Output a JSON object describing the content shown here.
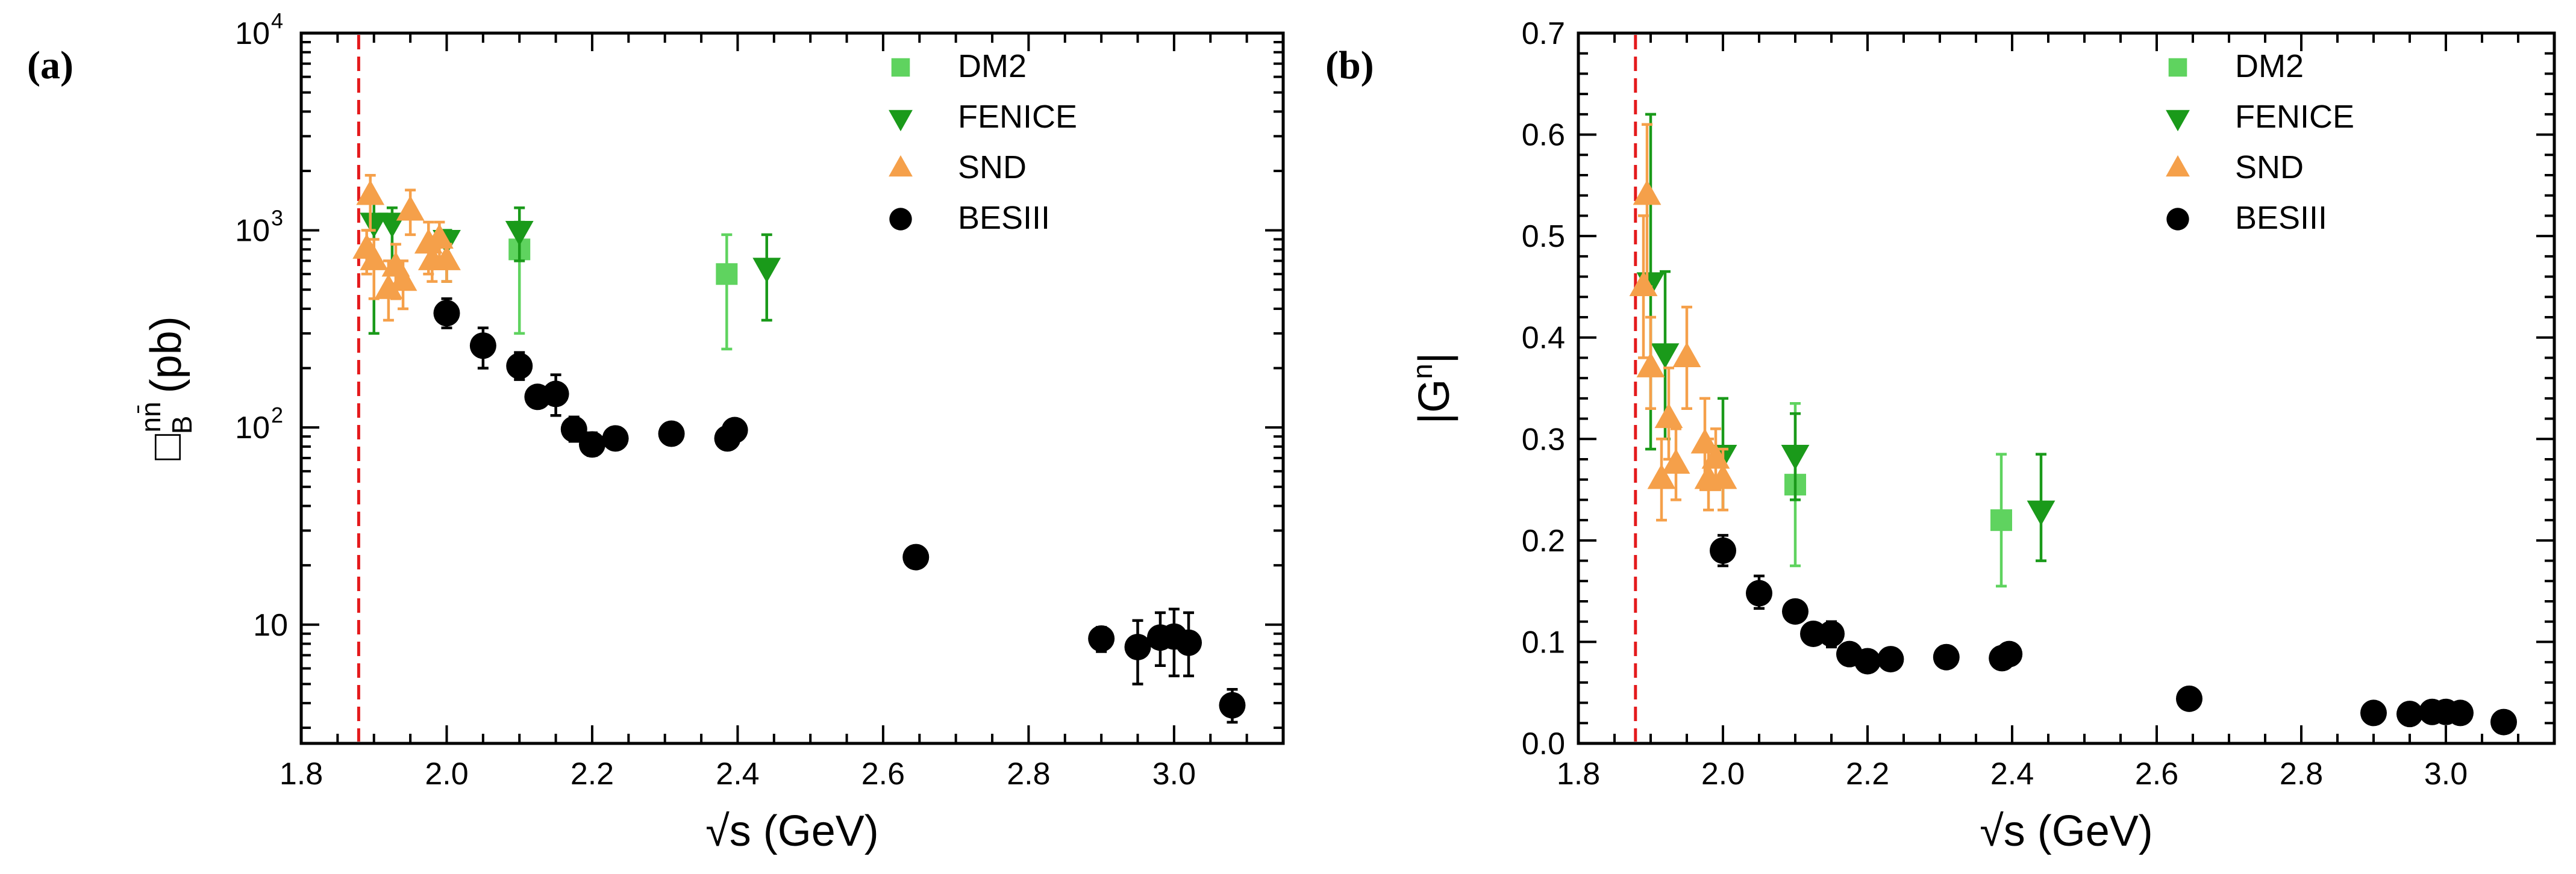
{
  "chart_data": [
    {
      "type": "scatter",
      "panel_label": "(a)",
      "xlabel": "√s (GeV)",
      "ylabel": "□",
      "ylabel_sup": "nn̄",
      "ylabel_sub": "B",
      "ylabel_unit": "(pb)",
      "xlim": [
        1.8,
        3.15
      ],
      "ylim": [
        2.5,
        10000
      ],
      "yscale": "log",
      "x_ticks": [
        "1.8",
        "2.0",
        "2.2",
        "2.4",
        "2.6",
        "2.8",
        "3.0"
      ],
      "y_ticks": [
        {
          "value": 10,
          "label": "10"
        },
        {
          "value": 100,
          "label": "10",
          "exp": "2"
        },
        {
          "value": 1000,
          "label": "10",
          "exp": "3"
        },
        {
          "value": 10000,
          "label": "10",
          "exp": "4"
        }
      ],
      "threshold_line": {
        "x": 1.879,
        "color": "#e41a1c"
      },
      "legend_position": "top-right",
      "series": [
        {
          "name": "DM2",
          "marker": "square",
          "color": "#5fd35f",
          "points": [
            {
              "x": 2.1,
              "y": 800,
              "lo": 300,
              "hi": 1100
            },
            {
              "x": 2.385,
              "y": 600,
              "lo": 250,
              "hi": 950
            }
          ]
        },
        {
          "name": "FENICE",
          "marker": "triangle-down",
          "color": "#1a9a1a",
          "points": [
            {
              "x": 1.9,
              "y": 1100,
              "lo": 300,
              "hi": 1400
            },
            {
              "x": 1.925,
              "y": 1100,
              "lo": 600,
              "hi": 1300
            },
            {
              "x": 2.0,
              "y": 900,
              "lo": 550,
              "hi": 1000
            },
            {
              "x": 2.1,
              "y": 1000,
              "lo": 700,
              "hi": 1300
            },
            {
              "x": 2.44,
              "y": 650,
              "lo": 350,
              "hi": 950
            }
          ]
        },
        {
          "name": "SND",
          "marker": "triangle-up",
          "color": "#f5a04a",
          "points": [
            {
              "x": 1.89,
              "y": 800,
              "lo": 600,
              "hi": 1000
            },
            {
              "x": 1.895,
              "y": 1500,
              "lo": 1000,
              "hi": 1900
            },
            {
              "x": 1.9,
              "y": 700,
              "lo": 450,
              "hi": 900
            },
            {
              "x": 1.92,
              "y": 500,
              "lo": 350,
              "hi": 700
            },
            {
              "x": 1.93,
              "y": 650,
              "lo": 450,
              "hi": 850
            },
            {
              "x": 1.94,
              "y": 550,
              "lo": 400,
              "hi": 700
            },
            {
              "x": 1.95,
              "y": 1250,
              "lo": 950,
              "hi": 1600
            },
            {
              "x": 1.975,
              "y": 850,
              "lo": 600,
              "hi": 1100
            },
            {
              "x": 1.98,
              "y": 700,
              "lo": 550,
              "hi": 900
            },
            {
              "x": 1.99,
              "y": 900,
              "lo": 700,
              "hi": 1100
            },
            {
              "x": 2.0,
              "y": 700,
              "lo": 550,
              "hi": 850
            }
          ]
        },
        {
          "name": "BESIII",
          "marker": "circle",
          "color": "#000000",
          "points": [
            {
              "x": 2.0,
              "y": 380,
              "lo": 320,
              "hi": 450
            },
            {
              "x": 2.05,
              "y": 260,
              "lo": 200,
              "hi": 320
            },
            {
              "x": 2.1,
              "y": 205,
              "lo": 175,
              "hi": 240
            },
            {
              "x": 2.125,
              "y": 143,
              "lo": 133,
              "hi": 153
            },
            {
              "x": 2.15,
              "y": 148,
              "lo": 115,
              "hi": 185
            },
            {
              "x": 2.175,
              "y": 98,
              "lo": 85,
              "hi": 113
            },
            {
              "x": 2.2,
              "y": 82,
              "lo": 72,
              "hi": 94
            },
            {
              "x": 2.232,
              "y": 88,
              "lo": 78,
              "hi": 100
            },
            {
              "x": 2.309,
              "y": 93,
              "lo": 84,
              "hi": 103
            },
            {
              "x": 2.386,
              "y": 88,
              "lo": 80,
              "hi": 97
            },
            {
              "x": 2.396,
              "y": 97,
              "lo": 92,
              "hi": 102
            },
            {
              "x": 2.645,
              "y": 22,
              "lo": 19.5,
              "hi": 24.5
            },
            {
              "x": 2.9,
              "y": 8.5,
              "lo": 7.3,
              "hi": 9.7
            },
            {
              "x": 2.95,
              "y": 7.7,
              "lo": 5.0,
              "hi": 10.5
            },
            {
              "x": 2.981,
              "y": 8.6,
              "lo": 6.2,
              "hi": 11.5
            },
            {
              "x": 3.0,
              "y": 8.7,
              "lo": 5.5,
              "hi": 12
            },
            {
              "x": 3.02,
              "y": 8.1,
              "lo": 5.5,
              "hi": 11.5
            },
            {
              "x": 3.08,
              "y": 3.9,
              "lo": 3.2,
              "hi": 4.7
            }
          ]
        }
      ]
    },
    {
      "type": "scatter",
      "panel_label": "(b)",
      "xlabel": "√s (GeV)",
      "ylabel": "|G",
      "ylabel_sup": "n",
      "ylabel_tail": "|",
      "xlim": [
        1.8,
        3.15
      ],
      "ylim": [
        0.0,
        0.7
      ],
      "yscale": "linear",
      "x_ticks": [
        "1.8",
        "2.0",
        "2.2",
        "2.4",
        "2.6",
        "2.8",
        "3.0"
      ],
      "y_ticks": [
        {
          "value": 0.0,
          "label": "0.0"
        },
        {
          "value": 0.1,
          "label": "0.1"
        },
        {
          "value": 0.2,
          "label": "0.2"
        },
        {
          "value": 0.3,
          "label": "0.3"
        },
        {
          "value": 0.4,
          "label": "0.4"
        },
        {
          "value": 0.5,
          "label": "0.5"
        },
        {
          "value": 0.6,
          "label": "0.6"
        },
        {
          "value": 0.7,
          "label": "0.7"
        }
      ],
      "threshold_line": {
        "x": 1.879,
        "color": "#e41a1c"
      },
      "legend_position": "top-right",
      "series": [
        {
          "name": "DM2",
          "marker": "square",
          "color": "#5fd35f",
          "points": [
            {
              "x": 2.1,
              "y": 0.255,
              "lo": 0.175,
              "hi": 0.335
            },
            {
              "x": 2.385,
              "y": 0.22,
              "lo": 0.155,
              "hi": 0.285
            }
          ]
        },
        {
          "name": "FENICE",
          "marker": "triangle-down",
          "color": "#1a9a1a",
          "points": [
            {
              "x": 1.9,
              "y": 0.455,
              "lo": 0.29,
              "hi": 0.62
            },
            {
              "x": 1.92,
              "y": 0.385,
              "lo": 0.3,
              "hi": 0.465
            },
            {
              "x": 2.0,
              "y": 0.285,
              "lo": 0.23,
              "hi": 0.34
            },
            {
              "x": 2.1,
              "y": 0.285,
              "lo": 0.24,
              "hi": 0.325
            },
            {
              "x": 2.44,
              "y": 0.23,
              "lo": 0.18,
              "hi": 0.285
            }
          ]
        },
        {
          "name": "SND",
          "marker": "triangle-up",
          "color": "#f5a04a",
          "points": [
            {
              "x": 1.89,
              "y": 0.45,
              "lo": 0.38,
              "hi": 0.52
            },
            {
              "x": 1.895,
              "y": 0.54,
              "lo": 0.45,
              "hi": 0.61
            },
            {
              "x": 1.9,
              "y": 0.37,
              "lo": 0.33,
              "hi": 0.42
            },
            {
              "x": 1.915,
              "y": 0.26,
              "lo": 0.22,
              "hi": 0.3
            },
            {
              "x": 1.925,
              "y": 0.32,
              "lo": 0.28,
              "hi": 0.37
            },
            {
              "x": 1.935,
              "y": 0.275,
              "lo": 0.24,
              "hi": 0.31
            },
            {
              "x": 1.95,
              "y": 0.38,
              "lo": 0.33,
              "hi": 0.43
            },
            {
              "x": 1.975,
              "y": 0.295,
              "lo": 0.25,
              "hi": 0.34
            },
            {
              "x": 1.98,
              "y": 0.26,
              "lo": 0.23,
              "hi": 0.3
            },
            {
              "x": 1.99,
              "y": 0.28,
              "lo": 0.25,
              "hi": 0.31
            },
            {
              "x": 2.0,
              "y": 0.26,
              "lo": 0.23,
              "hi": 0.29
            }
          ]
        },
        {
          "name": "BESIII",
          "marker": "circle",
          "color": "#000000",
          "points": [
            {
              "x": 2.0,
              "y": 0.19,
              "lo": 0.175,
              "hi": 0.205
            },
            {
              "x": 2.05,
              "y": 0.148,
              "lo": 0.133,
              "hi": 0.165
            },
            {
              "x": 2.1,
              "y": 0.13,
              "lo": 0.12,
              "hi": 0.14
            },
            {
              "x": 2.125,
              "y": 0.108,
              "lo": 0.103,
              "hi": 0.113
            },
            {
              "x": 2.15,
              "y": 0.108,
              "lo": 0.095,
              "hi": 0.12
            },
            {
              "x": 2.175,
              "y": 0.088,
              "lo": 0.082,
              "hi": 0.094
            },
            {
              "x": 2.2,
              "y": 0.081,
              "lo": 0.077,
              "hi": 0.086
            },
            {
              "x": 2.232,
              "y": 0.083,
              "lo": 0.079,
              "hi": 0.087
            },
            {
              "x": 2.309,
              "y": 0.085,
              "lo": 0.082,
              "hi": 0.088
            },
            {
              "x": 2.386,
              "y": 0.084,
              "lo": 0.081,
              "hi": 0.087
            },
            {
              "x": 2.396,
              "y": 0.088,
              "lo": 0.086,
              "hi": 0.09
            },
            {
              "x": 2.645,
              "y": 0.044,
              "lo": 0.042,
              "hi": 0.046
            },
            {
              "x": 2.9,
              "y": 0.03,
              "lo": 0.028,
              "hi": 0.032
            },
            {
              "x": 2.95,
              "y": 0.029,
              "lo": 0.027,
              "hi": 0.031
            },
            {
              "x": 2.981,
              "y": 0.031,
              "lo": 0.029,
              "hi": 0.033
            },
            {
              "x": 3.0,
              "y": 0.031,
              "lo": 0.029,
              "hi": 0.033
            },
            {
              "x": 3.02,
              "y": 0.03,
              "lo": 0.028,
              "hi": 0.032
            },
            {
              "x": 3.08,
              "y": 0.021,
              "lo": 0.019,
              "hi": 0.023
            }
          ]
        }
      ]
    }
  ]
}
